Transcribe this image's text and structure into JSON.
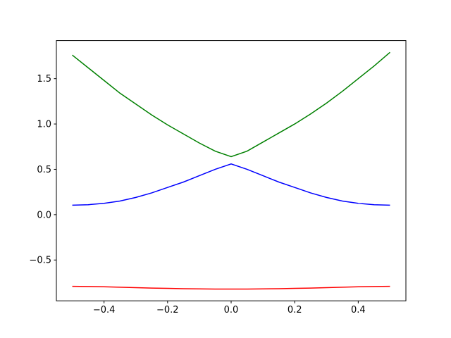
{
  "chart_data": {
    "type": "line",
    "x": [
      -0.5,
      -0.45,
      -0.4,
      -0.35,
      -0.3,
      -0.25,
      -0.2,
      -0.15,
      -0.1,
      -0.05,
      0,
      0.05,
      0.1,
      0.15,
      0.2,
      0.25,
      0.3,
      0.35,
      0.4,
      0.45,
      0.5
    ],
    "series": [
      {
        "color": "#008000",
        "values": [
          1.76,
          1.62,
          1.48,
          1.34,
          1.22,
          1.1,
          0.99,
          0.89,
          0.79,
          0.7,
          0.64,
          0.7,
          0.8,
          0.9,
          1.0,
          1.11,
          1.23,
          1.36,
          1.5,
          1.64,
          1.79
        ]
      },
      {
        "color": "#0000ff",
        "values": [
          0.105,
          0.11,
          0.125,
          0.15,
          0.19,
          0.24,
          0.3,
          0.36,
          0.43,
          0.5,
          0.56,
          0.5,
          0.43,
          0.36,
          0.3,
          0.24,
          0.19,
          0.15,
          0.125,
          0.11,
          0.105
        ]
      },
      {
        "color": "#ff0000",
        "values": [
          -0.79,
          -0.792,
          -0.795,
          -0.8,
          -0.805,
          -0.81,
          -0.813,
          -0.816,
          -0.818,
          -0.82,
          -0.82,
          -0.82,
          -0.818,
          -0.816,
          -0.813,
          -0.81,
          -0.805,
          -0.8,
          -0.795,
          -0.792,
          -0.79
        ]
      }
    ],
    "xlim": [
      -0.55,
      0.55
    ],
    "ylim": [
      -0.95,
      1.92
    ],
    "xticks": [
      {
        "value": -0.4,
        "label": "−0.4"
      },
      {
        "value": -0.2,
        "label": "−0.2"
      },
      {
        "value": 0,
        "label": "0.0"
      },
      {
        "value": 0.2,
        "label": "0.2"
      },
      {
        "value": 0.4,
        "label": "0.4"
      }
    ],
    "yticks": [
      {
        "value": -0.5,
        "label": "−0.5"
      },
      {
        "value": 0,
        "label": "0.0"
      },
      0.5,
      {
        "value": 1,
        "label": "1.0"
      },
      1.5
    ]
  }
}
